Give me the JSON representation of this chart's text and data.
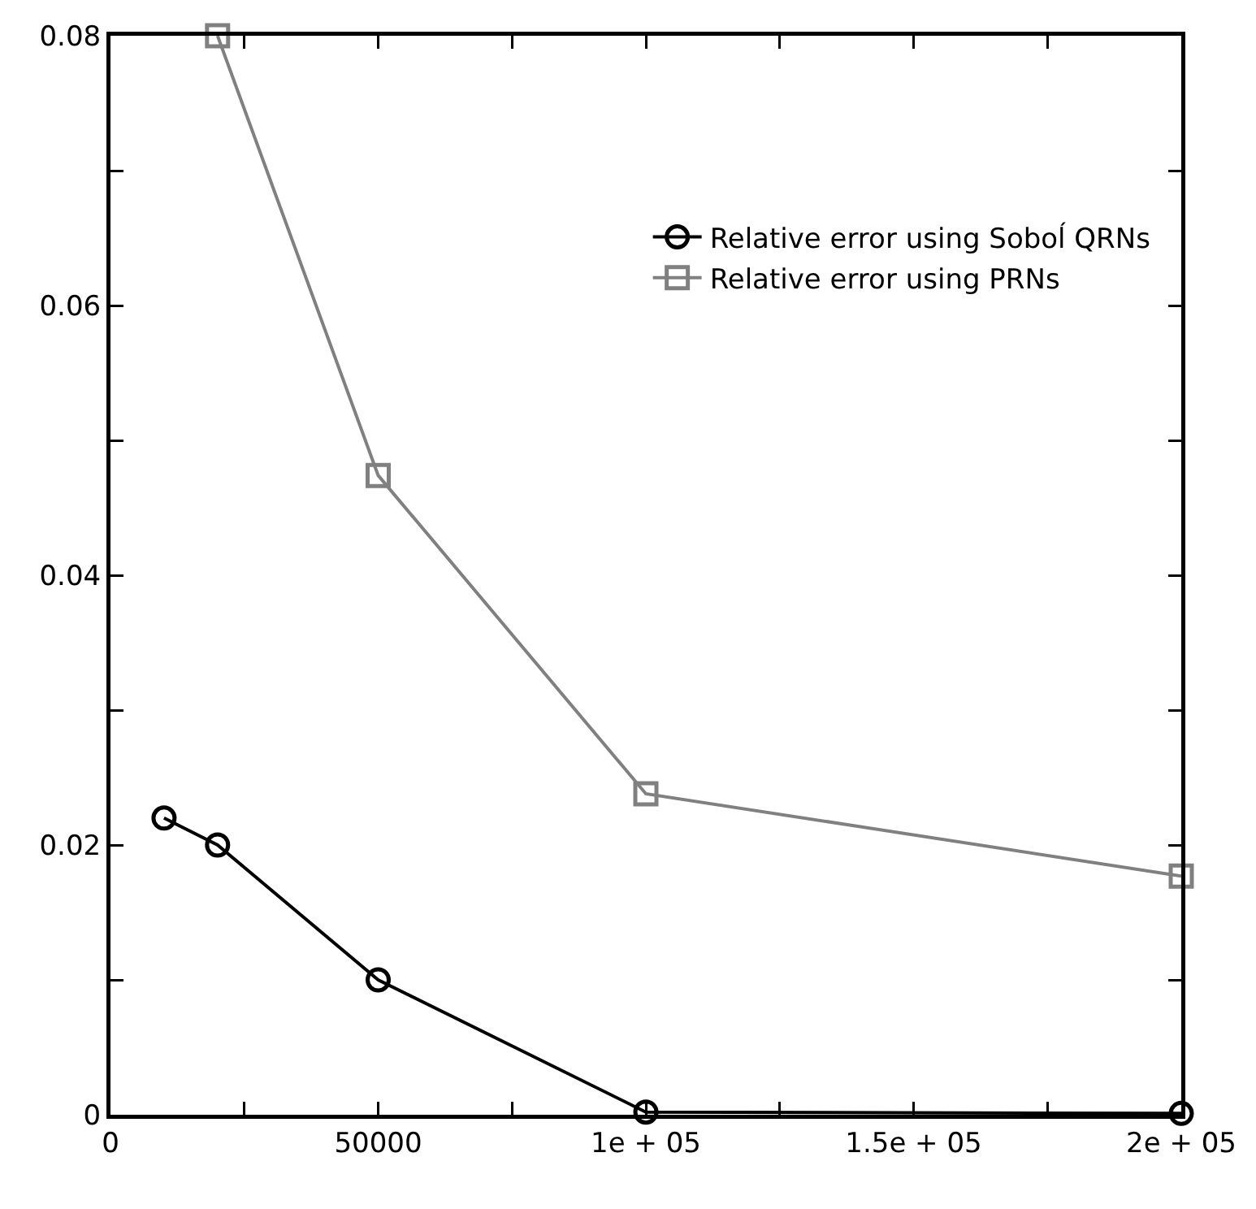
{
  "chart_data": {
    "type": "line",
    "series": [
      {
        "name": "Relative error using Soboĺ QRNs",
        "color": "#000000",
        "marker": "circle",
        "x": [
          10000,
          20000,
          50000,
          100000,
          200000
        ],
        "values": [
          0.022,
          0.02,
          0.01,
          0.0002,
          0.0001
        ]
      },
      {
        "name": "Relative error using PRNs",
        "color": "#808080",
        "marker": "square",
        "x": [
          20000,
          50000,
          100000,
          200000
        ],
        "values": [
          0.08,
          0.0474,
          0.0238,
          0.0177
        ]
      }
    ],
    "xlim": [
      0,
      200000
    ],
    "xticks": [
      0,
      {
        "value": 25000,
        "label": null
      },
      50000,
      {
        "value": 75000,
        "label": null
      },
      {
        "value": 100000,
        "label": "1e + 05"
      },
      {
        "value": 125000,
        "label": null
      },
      {
        "value": 150000,
        "label": "1.5e + 05"
      },
      {
        "value": 175000,
        "label": null
      },
      {
        "value": 200000,
        "label": "2e + 05"
      }
    ],
    "ylim": [
      0,
      0.08
    ],
    "yticks": [
      0,
      {
        "value": 0.01,
        "label": null
      },
      0.02,
      {
        "value": 0.03,
        "label": null
      },
      0.04,
      {
        "value": 0.05,
        "label": null
      },
      0.06,
      {
        "value": 0.07,
        "label": null
      },
      0.08
    ],
    "grid": false,
    "legend": "top right",
    "line_style": "solid"
  }
}
